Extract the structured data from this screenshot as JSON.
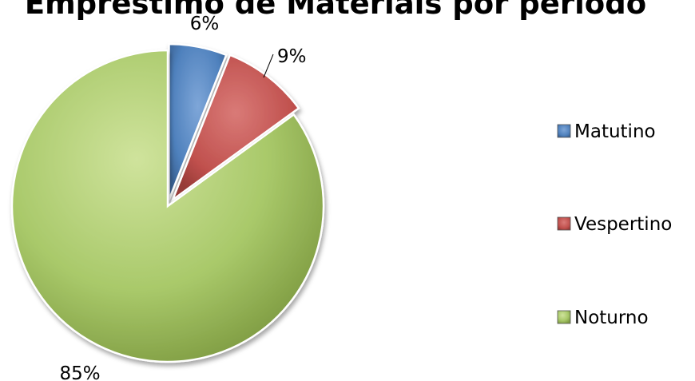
{
  "chart_data": {
    "type": "pie",
    "title": "Empréstimo de Materiais por período",
    "categories": [
      "Matutino",
      "Vespertino",
      "Noturno"
    ],
    "values": [
      6,
      9,
      85
    ],
    "labels": [
      "6%",
      "9%",
      "85%"
    ],
    "colors": [
      "#4f81bd",
      "#c0504d",
      "#9bbb59"
    ],
    "legend_position": "right",
    "exploded": true
  }
}
